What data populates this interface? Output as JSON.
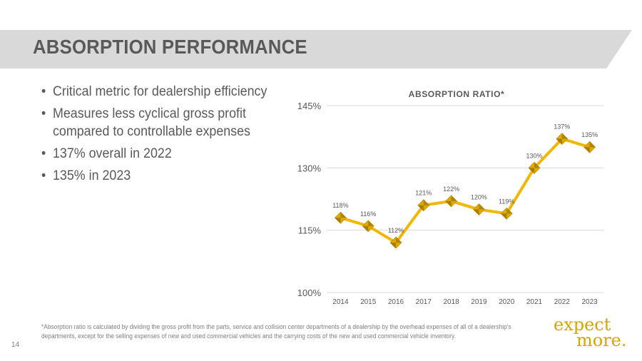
{
  "slide": {
    "title": "ABSORPTION PERFORMANCE",
    "page_number": "14",
    "band_color": "#d9d9d9",
    "accent_color": "#f2b705"
  },
  "bullets": [
    "Critical metric for dealership efficiency",
    "Measures less cyclical gross profit compared to controllable expenses",
    "137% overall in 2022",
    "135% in 2023"
  ],
  "footnote": "*Absorption ratio is calculated by dividing the gross profit from the parts, service and collision center departments of a dealership by the overhead expenses of all of a dealership's departments, except  for the selling expenses of new and used commercial vehicles and the carrying costs of the new and used commercial vehicle inventory.",
  "logo": {
    "line1": "expect",
    "line2": "more."
  },
  "chart_data": {
    "type": "line",
    "title": "ABSORPTION RATIO*",
    "categories": [
      "2014",
      "2015",
      "2016",
      "2017",
      "2018",
      "2019",
      "2020",
      "2021",
      "2022",
      "2023"
    ],
    "values": [
      118,
      116,
      112,
      121,
      122,
      120,
      119,
      130,
      137,
      135
    ],
    "data_labels": [
      "118%",
      "116%",
      "112%",
      "121%",
      "122%",
      "120%",
      "119%",
      "130%",
      "137%",
      "135%"
    ],
    "ylim": [
      100,
      145
    ],
    "yticks": [
      100,
      115,
      130,
      145
    ],
    "ytick_labels": [
      "100%",
      "115%",
      "130%",
      "145%"
    ],
    "xlabel": "",
    "ylabel": "",
    "grid": true,
    "legend": "none",
    "line_color": "#f2b705",
    "marker_color": "#e0a800"
  }
}
